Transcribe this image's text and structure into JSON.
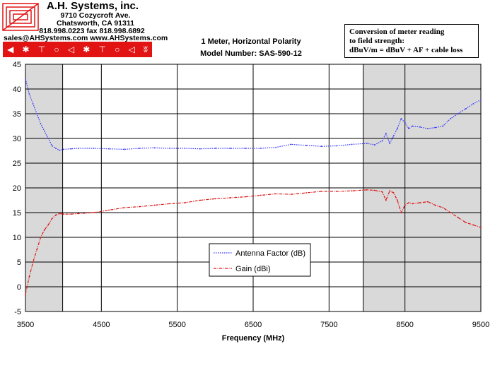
{
  "header": {
    "company": "A.H. Systems, inc.",
    "address": "9710 Cozycroft Ave.",
    "city": "Chatsworth, CA 91311",
    "phone": "818.998.0223 fax 818.998.6892",
    "web": "sales@AHSystems.com www.AHSystems.com"
  },
  "chart_title": {
    "line1": "1 Meter, Horizontal Polarity",
    "line2": "Model Number: SAS-590-12"
  },
  "note": {
    "line1": "Conversion of meter reading",
    "line2": "to field strength:",
    "line3": "dBuV/m = dBuV + AF + cable loss"
  },
  "colors": {
    "antenna_factor": "#3333ff",
    "gain": "#dd1111",
    "shaded_region": "#d9d9d9",
    "icon_bar": "#e11313"
  },
  "chart_data": {
    "type": "line",
    "xlabel": "Frequency (MHz)",
    "ylabel": "",
    "xlim": [
      3500,
      9500
    ],
    "ylim": [
      -5,
      45
    ],
    "x_ticks": [
      3500,
      4500,
      5500,
      6500,
      7500,
      8500,
      9500
    ],
    "y_ticks": [
      45,
      40,
      35,
      30,
      25,
      20,
      15,
      10,
      5,
      0,
      -5
    ],
    "grid": true,
    "shaded_ranges": [
      [
        3500,
        3990
      ],
      [
        7950,
        9500
      ]
    ],
    "legend": {
      "position": "center-bottom",
      "entries": [
        "Antenna Factor (dB)",
        "Gain (dBi)"
      ]
    },
    "series": [
      {
        "name": "Antenna Factor (dB)",
        "style": "dotted",
        "x": [
          3500,
          3550,
          3600,
          3650,
          3700,
          3750,
          3800,
          3850,
          3900,
          3950,
          4000,
          4100,
          4200,
          4400,
          4600,
          4800,
          5000,
          5200,
          5400,
          5600,
          5800,
          6000,
          6200,
          6400,
          6600,
          6800,
          7000,
          7200,
          7400,
          7600,
          7800,
          8000,
          8100,
          8200,
          8250,
          8300,
          8350,
          8400,
          8450,
          8500,
          8550,
          8600,
          8700,
          8800,
          8900,
          9000,
          9100,
          9200,
          9300,
          9400,
          9500
        ],
        "values": [
          42,
          39,
          37,
          35,
          33,
          31.5,
          30,
          28.5,
          28,
          27.6,
          27.8,
          27.9,
          28,
          28,
          27.9,
          27.8,
          28,
          28.1,
          28,
          28,
          27.9,
          28,
          28,
          28,
          28,
          28.2,
          28.8,
          28.6,
          28.4,
          28.5,
          28.8,
          29,
          28.7,
          29.5,
          31,
          29,
          30.5,
          32,
          34,
          33.2,
          32,
          32.5,
          32.3,
          32,
          32.2,
          32.5,
          34,
          35,
          36,
          37,
          37.8
        ]
      },
      {
        "name": "Gain (dBi)",
        "style": "dash-dot",
        "x": [
          3500,
          3550,
          3600,
          3650,
          3700,
          3750,
          3800,
          3850,
          3900,
          3950,
          4000,
          4100,
          4200,
          4400,
          4600,
          4800,
          5000,
          5200,
          5400,
          5600,
          5800,
          6000,
          6200,
          6400,
          6600,
          6800,
          7000,
          7200,
          7400,
          7600,
          7800,
          8000,
          8100,
          8200,
          8250,
          8300,
          8350,
          8400,
          8450,
          8500,
          8550,
          8600,
          8700,
          8800,
          8900,
          9000,
          9100,
          9200,
          9300,
          9400,
          9500
        ],
        "values": [
          -1.5,
          2,
          5,
          7.5,
          10,
          11.5,
          12.5,
          13.8,
          14.5,
          14.8,
          14.7,
          14.7,
          14.8,
          15,
          15.5,
          16,
          16.2,
          16.5,
          16.8,
          17,
          17.5,
          17.8,
          18,
          18.2,
          18.5,
          18.8,
          18.7,
          19,
          19.3,
          19.3,
          19.4,
          19.6,
          19.5,
          19.2,
          17.5,
          19.4,
          19,
          17.5,
          15,
          16.5,
          17,
          16.8,
          17,
          17.2,
          16.5,
          16,
          15,
          14,
          13,
          12.5,
          12
        ]
      }
    ]
  }
}
